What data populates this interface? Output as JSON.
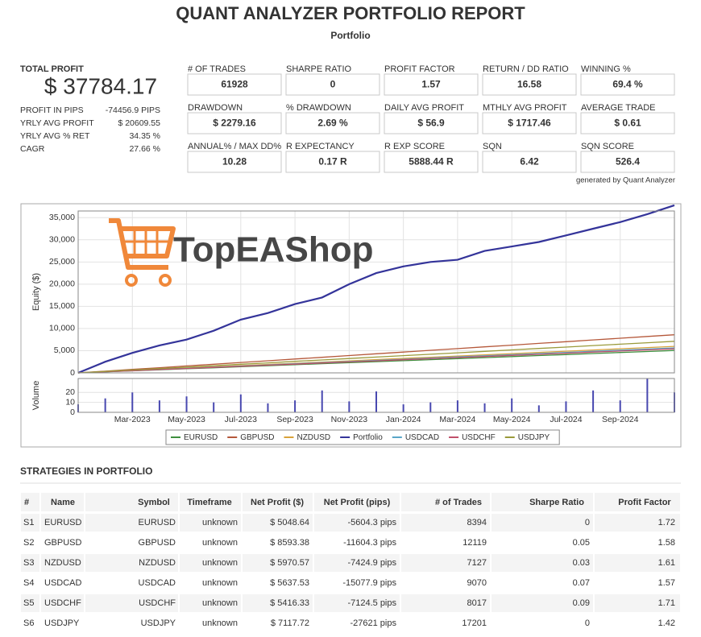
{
  "header": {
    "title": "QUANT ANALYZER PORTFOLIO REPORT",
    "subtitle": "Portfolio"
  },
  "summary": {
    "label": "TOTAL PROFIT",
    "value": "$ 37784.17",
    "color": "#4a9a2e",
    "rows": [
      {
        "label": "PROFIT IN PIPS",
        "value": "-74456.9 PIPS",
        "color": "#c0392b"
      },
      {
        "label": "YRLY AVG PROFIT",
        "value": "$ 20609.55",
        "color": "#4a9a2e"
      },
      {
        "label": "YRLY AVG % RET",
        "value": "34.35 %",
        "color": "#4a9a2e"
      },
      {
        "label": "CAGR",
        "value": "27.66 %",
        "color": "#4a9a2e"
      }
    ]
  },
  "stats": [
    {
      "label": "# OF TRADES",
      "value": "61928"
    },
    {
      "label": "SHARPE RATIO",
      "value": "0"
    },
    {
      "label": "PROFIT FACTOR",
      "value": "1.57"
    },
    {
      "label": "RETURN / DD RATIO",
      "value": "16.58"
    },
    {
      "label": "WINNING %",
      "value": "69.4 %"
    },
    {
      "label": "DRAWDOWN",
      "value": "$ 2279.16"
    },
    {
      "label": "% DRAWDOWN",
      "value": "2.69 %"
    },
    {
      "label": "DAILY AVG PROFIT",
      "value": "$ 56.9"
    },
    {
      "label": "MTHLY AVG PROFIT",
      "value": "$ 1717.46"
    },
    {
      "label": "AVERAGE TRADE",
      "value": "$ 0.61"
    },
    {
      "label": "ANNUAL% / MAX DD%",
      "value": "10.28"
    },
    {
      "label": "R EXPECTANCY",
      "value": "0.17 R"
    },
    {
      "label": "R EXP SCORE",
      "value": "5888.44 R"
    },
    {
      "label": "SQN",
      "value": "6.42"
    },
    {
      "label": "SQN SCORE",
      "value": "526.4"
    }
  ],
  "generated_by": "generated by Quant Analyzer",
  "watermark": "TopEAShop",
  "chart_data": [
    {
      "type": "line",
      "ylabel": "Equity ($)",
      "x": [
        "2023-01",
        "2023-02",
        "2023-03",
        "2023-04",
        "2023-05",
        "2023-06",
        "2023-07",
        "2023-08",
        "2023-09",
        "2023-10",
        "2023-11",
        "2023-12",
        "2024-01",
        "2024-02",
        "2024-03",
        "2024-04",
        "2024-05",
        "2024-06",
        "2024-07",
        "2024-08",
        "2024-09",
        "2024-10",
        "2024-11"
      ],
      "xlim": [
        "2023-01",
        "2024-11"
      ],
      "xticks": [
        {
          "value": "2023-03",
          "label": "Mar-2023"
        },
        {
          "value": "2023-05",
          "label": "May-2023"
        },
        {
          "value": "2023-07",
          "label": "Jul-2023"
        },
        {
          "value": "2023-09",
          "label": "Sep-2023"
        },
        {
          "value": "2023-11",
          "label": "Nov-2023"
        },
        {
          "value": "2024-01",
          "label": "Jan-2024"
        },
        {
          "value": "2024-03",
          "label": "Mar-2024"
        },
        {
          "value": "2024-05",
          "label": "May-2024"
        },
        {
          "value": "2024-07",
          "label": "Jul-2024"
        },
        {
          "value": "2024-09",
          "label": "Sep-2024"
        }
      ],
      "ylim": [
        0,
        36500
      ],
      "yticks": [
        0,
        {
          "value": 5000,
          "label": "5,000"
        },
        {
          "value": 10000,
          "label": "10,000"
        },
        {
          "value": 15000,
          "label": "15,000"
        },
        {
          "value": 20000,
          "label": "20,000"
        },
        {
          "value": 25000,
          "label": "25,000"
        },
        {
          "value": 30000,
          "label": "30,000"
        },
        {
          "value": 35000,
          "label": "35,000"
        }
      ],
      "grid": true,
      "series": [
        {
          "name": "EURUSD",
          "color": "#3f8f3f",
          "values": [
            0,
            230,
            460,
            690,
            920,
            1150,
            1380,
            1610,
            1840,
            2070,
            2300,
            2530,
            2750,
            2980,
            3210,
            3440,
            3670,
            3900,
            4130,
            4360,
            4590,
            4820,
            5049
          ]
        },
        {
          "name": "GBPUSD",
          "color": "#b5583a",
          "values": [
            0,
            390,
            780,
            1170,
            1560,
            1950,
            2340,
            2730,
            3120,
            3510,
            3910,
            4300,
            4690,
            5080,
            5470,
            5860,
            6250,
            6640,
            7030,
            7420,
            7810,
            8200,
            8593
          ]
        },
        {
          "name": "NZDUSD",
          "color": "#d9a23a",
          "values": [
            0,
            270,
            540,
            810,
            1090,
            1360,
            1630,
            1900,
            2170,
            2440,
            2710,
            2990,
            3260,
            3530,
            3800,
            4070,
            4340,
            4610,
            4880,
            5160,
            5430,
            5700,
            5971
          ]
        },
        {
          "name": "Portfolio",
          "color": "#34349a",
          "values": [
            0,
            2500,
            4500,
            6200,
            7500,
            9500,
            12000,
            13500,
            15500,
            17000,
            20000,
            22500,
            24000,
            25000,
            25500,
            27500,
            28500,
            29500,
            31000,
            32500,
            34000,
            35800,
            37784
          ]
        },
        {
          "name": "USDCAD",
          "color": "#5aa6c8",
          "values": [
            0,
            256,
            512,
            769,
            1025,
            1281,
            1537,
            1794,
            2050,
            2306,
            2563,
            2819,
            3075,
            3331,
            3588,
            3844,
            4100,
            4356,
            4613,
            4869,
            5125,
            5381,
            5638
          ]
        },
        {
          "name": "USDCHF",
          "color": "#c0506a",
          "values": [
            0,
            246,
            492,
            738,
            985,
            1231,
            1477,
            1723,
            1970,
            2216,
            2462,
            2708,
            2954,
            3200,
            3447,
            3693,
            3939,
            4185,
            4431,
            4677,
            4924,
            5170,
            5416
          ]
        },
        {
          "name": "USDJPY",
          "color": "#9a9a3a",
          "values": [
            0,
            320,
            650,
            970,
            1290,
            1620,
            1940,
            2260,
            2590,
            2910,
            3240,
            3560,
            3880,
            4200,
            4530,
            4850,
            5180,
            5500,
            5820,
            6150,
            6470,
            6790,
            7118
          ]
        }
      ]
    },
    {
      "type": "bar",
      "ylabel": "Volume",
      "color": "#4848b0",
      "x": [
        "2023-01",
        "2023-02",
        "2023-03",
        "2023-04",
        "2023-05",
        "2023-06",
        "2023-07",
        "2023-08",
        "2023-09",
        "2023-10",
        "2023-11",
        "2023-12",
        "2024-01",
        "2024-02",
        "2024-03",
        "2024-04",
        "2024-05",
        "2024-06",
        "2024-07",
        "2024-08",
        "2024-09",
        "2024-10",
        "2024-11"
      ],
      "values": [
        8,
        14,
        20,
        12,
        16,
        10,
        18,
        9,
        12,
        22,
        11,
        21,
        8,
        10,
        12,
        9,
        14,
        7,
        11,
        22,
        12,
        34,
        20
      ],
      "ylim": [
        0,
        34
      ],
      "yticks": [
        0,
        10,
        20
      ]
    }
  ],
  "strategies": {
    "title": "STRATEGIES IN PORTFOLIO",
    "columns": [
      "#",
      "Name",
      "Symbol",
      "Timeframe",
      "Net Profit ($)",
      "Net Profit (pips)",
      "# of Trades",
      "Sharpe Ratio",
      "Profit Factor"
    ],
    "rows": [
      [
        "S1",
        "EURUSD",
        "EURUSD",
        "unknown",
        "$ 5048.64",
        "-5604.3 pips",
        "8394",
        "0",
        "1.72"
      ],
      [
        "S2",
        "GBPUSD",
        "GBPUSD",
        "unknown",
        "$ 8593.38",
        "-11604.3 pips",
        "12119",
        "0.05",
        "1.58"
      ],
      [
        "S3",
        "NZDUSD",
        "NZDUSD",
        "unknown",
        "$ 5970.57",
        "-7424.9 pips",
        "7127",
        "0.03",
        "1.61"
      ],
      [
        "S4",
        "USDCAD",
        "USDCAD",
        "unknown",
        "$ 5637.53",
        "-15077.9 pips",
        "9070",
        "0.07",
        "1.57"
      ],
      [
        "S5",
        "USDCHF",
        "USDCHF",
        "unknown",
        "$ 5416.33",
        "-7124.5 pips",
        "8017",
        "0.09",
        "1.71"
      ],
      [
        "S6",
        "USDJPY",
        "USDJPY",
        "unknown",
        "$ 7117.72",
        "-27621 pips",
        "17201",
        "0",
        "1.42"
      ]
    ]
  }
}
